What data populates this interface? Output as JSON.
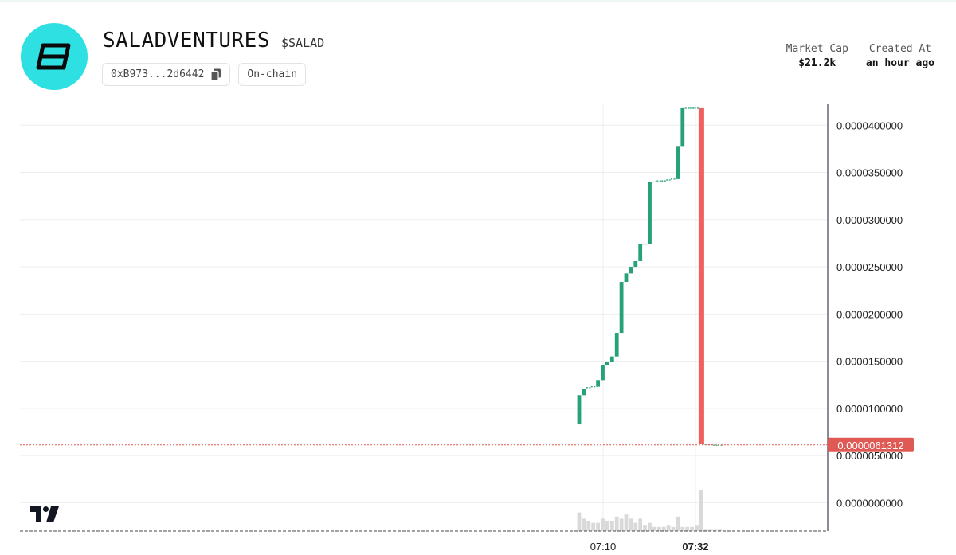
{
  "token": {
    "name": "SALADVENTURES",
    "ticker": "$SALAD",
    "address_short": "0xB973...2d6442",
    "chain_label": "On-chain",
    "logo_color": "#2fe0e3"
  },
  "stats": [
    {
      "label": "Market Cap",
      "value": "$21.2k"
    },
    {
      "label": "Created At",
      "value": "an hour ago"
    }
  ],
  "chart_data": {
    "type": "candlestick",
    "y_tick_labels": [
      "0.0000400000",
      "0.0000350000",
      "0.0000300000",
      "0.0000250000",
      "0.0000200000",
      "0.0000150000",
      "0.0000100000",
      "0.0000050000",
      "0.0000000000"
    ],
    "y_ticks": [
      4e-05,
      3.5e-05,
      3e-05,
      2.5e-05,
      2e-05,
      1.5e-05,
      1e-05,
      5e-06,
      0
    ],
    "ylim": [
      -3e-06,
      4.23e-05
    ],
    "x_tick_labels": [
      "07:10",
      "07:32"
    ],
    "last_price": 6.1312e-06,
    "last_price_label": "0.0000061312",
    "colors": {
      "up": "#26a17a",
      "down": "#f0615d",
      "grid": "#eeeeee",
      "axis": "#1a1a2e",
      "volume": "#d9d9d9",
      "price_line": "#e05a55"
    },
    "candles": [
      {
        "i": 0,
        "o": 8.3e-06,
        "c": 1.14e-05,
        "h": 1.14e-05,
        "l": 8.3e-06
      },
      {
        "i": 1,
        "o": 1.14e-05,
        "c": 1.21e-05,
        "h": 1.21e-05,
        "l": 1.14e-05
      },
      {
        "i": 2,
        "o": 1.21e-05,
        "c": 1.22e-05,
        "h": 1.22e-05,
        "l": 1.21e-05
      },
      {
        "i": 3,
        "o": 1.22e-05,
        "c": 1.23e-05,
        "h": 1.23e-05,
        "l": 1.22e-05
      },
      {
        "i": 4,
        "o": 1.23e-05,
        "c": 1.3e-05,
        "h": 1.3e-05,
        "l": 1.23e-05
      },
      {
        "i": 5,
        "o": 1.3e-05,
        "c": 1.46e-05,
        "h": 1.46e-05,
        "l": 1.3e-05
      },
      {
        "i": 6,
        "o": 1.46e-05,
        "c": 1.49e-05,
        "h": 1.49e-05,
        "l": 1.46e-05
      },
      {
        "i": 7,
        "o": 1.49e-05,
        "c": 1.55e-05,
        "h": 1.55e-05,
        "l": 1.49e-05
      },
      {
        "i": 8,
        "o": 1.55e-05,
        "c": 1.8e-05,
        "h": 1.8e-05,
        "l": 1.55e-05
      },
      {
        "i": 9,
        "o": 1.8e-05,
        "c": 2.34e-05,
        "h": 2.34e-05,
        "l": 1.8e-05
      },
      {
        "i": 10,
        "o": 2.34e-05,
        "c": 2.43e-05,
        "h": 2.43e-05,
        "l": 2.34e-05
      },
      {
        "i": 11,
        "o": 2.43e-05,
        "c": 2.5e-05,
        "h": 2.5e-05,
        "l": 2.43e-05
      },
      {
        "i": 12,
        "o": 2.5e-05,
        "c": 2.56e-05,
        "h": 2.56e-05,
        "l": 2.5e-05
      },
      {
        "i": 13,
        "o": 2.56e-05,
        "c": 2.74e-05,
        "h": 2.74e-05,
        "l": 2.56e-05
      },
      {
        "i": 14,
        "o": 2.74e-05,
        "c": 2.74e-05,
        "h": 2.74e-05,
        "l": 2.74e-05
      },
      {
        "i": 15,
        "o": 2.74e-05,
        "c": 3.4e-05,
        "h": 3.4e-05,
        "l": 2.74e-05
      },
      {
        "i": 16,
        "o": 3.4e-05,
        "c": 3.4e-05,
        "h": 3.4e-05,
        "l": 3.4e-05
      },
      {
        "i": 17,
        "o": 3.4e-05,
        "c": 3.41e-05,
        "h": 3.41e-05,
        "l": 3.4e-05
      },
      {
        "i": 18,
        "o": 3.41e-05,
        "c": 3.41e-05,
        "h": 3.41e-05,
        "l": 3.41e-05
      },
      {
        "i": 19,
        "o": 3.41e-05,
        "c": 3.42e-05,
        "h": 3.42e-05,
        "l": 3.41e-05
      },
      {
        "i": 20,
        "o": 3.42e-05,
        "c": 3.43e-05,
        "h": 3.43e-05,
        "l": 3.42e-05
      },
      {
        "i": 21,
        "o": 3.43e-05,
        "c": 3.78e-05,
        "h": 3.78e-05,
        "l": 3.43e-05
      },
      {
        "i": 22,
        "o": 3.78e-05,
        "c": 4.18e-05,
        "h": 4.18e-05,
        "l": 3.78e-05
      },
      {
        "i": 23,
        "o": 4.18e-05,
        "c": 4.18e-05,
        "h": 4.18e-05,
        "l": 4.18e-05
      },
      {
        "i": 24,
        "o": 4.18e-05,
        "c": 4.18e-05,
        "h": 4.18e-05,
        "l": 4.18e-05
      },
      {
        "i": 25,
        "o": 4.18e-05,
        "c": 4.18e-05,
        "h": 4.18e-05,
        "l": 4.18e-05
      },
      {
        "i": 26,
        "o": 4.18e-05,
        "c": 6.2e-06,
        "h": 4.18e-05,
        "l": 6.2e-06
      },
      {
        "i": 27,
        "o": 6.2e-06,
        "c": 6.2e-06,
        "h": 6.2e-06,
        "l": 6.2e-06
      },
      {
        "i": 28,
        "o": 6.2e-06,
        "c": 6.1e-06,
        "h": 6.2e-06,
        "l": 6.1e-06
      },
      {
        "i": 29,
        "o": 6.1e-06,
        "c": 6.1e-06,
        "h": 6.1e-06,
        "l": 6.1e-06
      },
      {
        "i": 30,
        "o": 6.1e-06,
        "c": 6.1e-06,
        "h": 6.1e-06,
        "l": 6.1e-06
      }
    ],
    "volume": [
      0.45,
      0.3,
      0.25,
      0.2,
      0.2,
      0.3,
      0.25,
      0.25,
      0.35,
      0.3,
      0.4,
      0.3,
      0.2,
      0.3,
      0.15,
      0.2,
      0.1,
      0.1,
      0.1,
      0.15,
      0.1,
      0.35,
      0.1,
      0.1,
      0.1,
      0.15,
      1.0,
      0.05,
      0.05,
      0.05,
      0.05
    ],
    "grid": true
  }
}
